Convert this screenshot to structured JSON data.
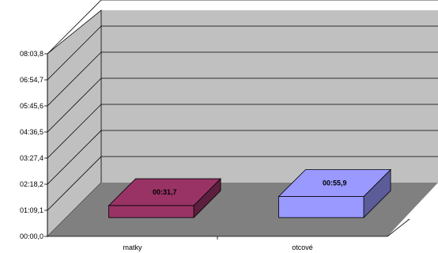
{
  "chart_data": {
    "type": "bar",
    "categories": [
      "matky",
      "otcové"
    ],
    "values": [
      31.7,
      55.9
    ],
    "data_labels": [
      "00:31,7",
      "00:55,9"
    ],
    "value_unit": "seconds",
    "ylim": [
      0,
      483.8
    ],
    "y_ticks": [
      0,
      69.1,
      138.2,
      207.4,
      276.5,
      345.6,
      414.7,
      483.8
    ],
    "y_tick_labels": [
      "00:00,0",
      "01:09,1",
      "02:18,2",
      "03:27,4",
      "04:36,5",
      "05:45,6",
      "06:54,7",
      "08:03,8"
    ],
    "bar_colors": [
      "#993366",
      "#9999ff"
    ],
    "wall_color": "#c0c0c0",
    "floor_color": "#808080",
    "grid": true,
    "legend": "none",
    "title": "",
    "xlabel": "",
    "ylabel": ""
  }
}
